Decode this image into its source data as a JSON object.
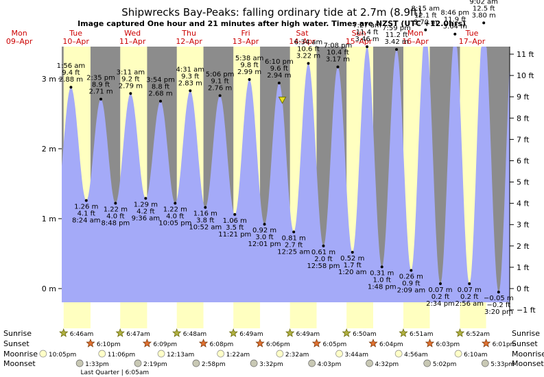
{
  "title": "Shipwrecks Bay-Peaks: falling  ordinary tide at 2.7m (8.9ft)",
  "subtitle": "Image captured One hour and 21 minutes after high water. Times are NZST (UTC +12.0hrs)",
  "chart_data": {
    "type": "area",
    "title": "Shipwrecks Bay-Peaks: falling  ordinary tide at 2.7m (8.9ft)",
    "left_axis": {
      "ticks": [
        "0 m",
        "1 m",
        "2 m",
        "3 m"
      ],
      "range_m": [
        -0.2,
        3.4
      ]
    },
    "right_axis": {
      "ticks": [
        "−1 ft",
        "0 ft",
        "1 ft",
        "2 ft",
        "3 ft",
        "4 ft",
        "5 ft",
        "6 ft",
        "7 ft",
        "8 ft",
        "9 ft",
        "10 ft",
        "11 ft"
      ]
    },
    "days": [
      {
        "name": "Mon",
        "date": "09–Apr"
      },
      {
        "name": "Tue",
        "date": "10–Apr"
      },
      {
        "name": "Wed",
        "date": "11–Apr"
      },
      {
        "name": "Thu",
        "date": "12–Apr"
      },
      {
        "name": "Fri",
        "date": "13–Apr"
      },
      {
        "name": "Sat",
        "date": "14–Apr"
      },
      {
        "name": "Sun",
        "date": "15–Apr"
      },
      {
        "name": "Mon",
        "date": "16–Apr"
      },
      {
        "name": "Tue",
        "date": "17–Apr"
      }
    ],
    "tides": [
      {
        "kind": "high",
        "time": "1:56 am",
        "ft": "9.4 ft",
        "m": 2.88,
        "mlabel": "2.88 m",
        "h": 33.9
      },
      {
        "kind": "low",
        "time": "8:24 am",
        "ft": "4.1 ft",
        "m": 1.26,
        "mlabel": "1.26 m",
        "h": 40.4
      },
      {
        "kind": "high",
        "time": "2:35 pm",
        "ft": "8.9 ft",
        "m": 2.71,
        "mlabel": "2.71 m",
        "h": 46.6
      },
      {
        "kind": "low",
        "time": "8:48 pm",
        "ft": "4.0 ft",
        "m": 1.22,
        "mlabel": "1.22 m",
        "h": 52.8
      },
      {
        "kind": "high",
        "time": "3:11 am",
        "ft": "9.2 ft",
        "m": 2.79,
        "mlabel": "2.79 m",
        "h": 59.2
      },
      {
        "kind": "low",
        "time": "9:36 am",
        "ft": "4.2 ft",
        "m": 1.29,
        "mlabel": "1.29 m",
        "h": 65.6
      },
      {
        "kind": "high",
        "time": "3:54 pm",
        "ft": "8.8 ft",
        "m": 2.68,
        "mlabel": "2.68 m",
        "h": 71.9
      },
      {
        "kind": "low",
        "time": "10:05 pm",
        "ft": "4.0 ft",
        "m": 1.22,
        "mlabel": "1.22 m",
        "h": 78.1
      },
      {
        "kind": "high",
        "time": "4:31 am",
        "ft": "9.3 ft",
        "m": 2.83,
        "mlabel": "2.83 m",
        "h": 84.5
      },
      {
        "kind": "low",
        "time": "10:52 am",
        "ft": "3.8 ft",
        "m": 1.16,
        "mlabel": "1.16 m",
        "h": 90.9
      },
      {
        "kind": "high",
        "time": "5:06 pm",
        "ft": "9.1 ft",
        "m": 2.76,
        "mlabel": "2.76 m",
        "h": 97.1
      },
      {
        "kind": "low",
        "time": "11:21 pm",
        "ft": "3.5 ft",
        "m": 1.06,
        "mlabel": "1.06 m",
        "h": 103.4
      },
      {
        "kind": "high",
        "time": "5:38 am",
        "ft": "9.8 ft",
        "m": 2.99,
        "mlabel": "2.99 m",
        "h": 109.6
      },
      {
        "kind": "low",
        "time": "12:01 pm",
        "ft": "3.0 ft",
        "m": 0.92,
        "mlabel": "0.92 m",
        "h": 116.0
      },
      {
        "kind": "high",
        "time": "6:10 pm",
        "ft": "9.6 ft",
        "m": 2.94,
        "mlabel": "2.94 m",
        "h": 122.2
      },
      {
        "kind": "low",
        "time": "12:25 am",
        "ft": "2.7 ft",
        "m": 0.81,
        "mlabel": "0.81 m",
        "h": 128.4
      },
      {
        "kind": "high",
        "time": "6:34 am",
        "ft": "10.6 ft",
        "m": 3.22,
        "mlabel": "3.22 m",
        "h": 134.6
      },
      {
        "kind": "low",
        "time": "12:58 pm",
        "ft": "2.0 ft",
        "m": 0.61,
        "mlabel": "0.61 m",
        "h": 141.0
      },
      {
        "kind": "high",
        "time": "7:08 pm",
        "ft": "10.4 ft",
        "m": 3.17,
        "mlabel": "3.17 m",
        "h": 147.1
      },
      {
        "kind": "low",
        "time": "1:20 am",
        "ft": "1.7 ft",
        "m": 0.52,
        "mlabel": "0.52 m",
        "h": 153.3
      },
      {
        "kind": "high",
        "time": "7:27 am",
        "ft": "11.4 ft",
        "m": 3.46,
        "mlabel": "3.46 m",
        "h": 159.5
      },
      {
        "kind": "low",
        "time": "1:48 pm",
        "ft": "1.0 ft",
        "m": 0.31,
        "mlabel": "0.31 m",
        "h": 165.8
      },
      {
        "kind": "high",
        "time": "7:59 pm",
        "ft": "11.2 ft",
        "m": 3.42,
        "mlabel": "3.42 m",
        "h": 172.0
      },
      {
        "kind": "low",
        "time": "2:09 am",
        "ft": "0.9 ft",
        "m": 0.26,
        "mlabel": "0.26 m",
        "h": 178.2
      },
      {
        "kind": "high",
        "time": "8:15 am",
        "ft": "12.1 ft",
        "m": 3.7,
        "mlabel": "3.70 m",
        "h": 184.3
      },
      {
        "kind": "low",
        "time": "2:34 pm",
        "ft": "0.2 ft",
        "m": 0.07,
        "mlabel": "0.07 m",
        "h": 190.6
      },
      {
        "kind": "high",
        "time": "8:46 pm",
        "ft": "11.9 ft",
        "m": 3.64,
        "mlabel": "3.64 m",
        "h": 196.8
      },
      {
        "kind": "low",
        "time": "2:56 am",
        "ft": "0.2 ft",
        "m": 0.07,
        "mlabel": "0.07 m",
        "h": 202.9
      },
      {
        "kind": "high",
        "time": "9:02 am",
        "ft": "12.5 ft",
        "m": 3.8,
        "mlabel": "3.80 m",
        "h": 209.0
      },
      {
        "kind": "low",
        "time": "3:20 pm",
        "ft": "−0.2 ft",
        "m": -0.05,
        "mlabel": "−0.05 m",
        "h": 215.3
      }
    ],
    "current_marker": {
      "time_hours": 123.55,
      "m": 2.7
    },
    "sun_moon": {
      "row_labels": [
        "Sunrise",
        "Sunset",
        "Moonrise",
        "Moonset"
      ],
      "sunrise": [
        {
          "h": 30.8,
          "t": "6:46am"
        },
        {
          "h": 54.8,
          "t": "6:47am"
        },
        {
          "h": 78.8,
          "t": "6:48am"
        },
        {
          "h": 102.8,
          "t": "6:49am"
        },
        {
          "h": 126.8,
          "t": "6:49am"
        },
        {
          "h": 150.8,
          "t": "6:50am"
        },
        {
          "h": 174.9,
          "t": "6:51am"
        },
        {
          "h": 198.9,
          "t": "6:52am"
        }
      ],
      "sunset": [
        {
          "h": 42.2,
          "t": "6:10pm"
        },
        {
          "h": 66.2,
          "t": "6:09pm"
        },
        {
          "h": 90.1,
          "t": "6:08pm"
        },
        {
          "h": 114.1,
          "t": "6:06pm"
        },
        {
          "h": 138.1,
          "t": "6:05pm"
        },
        {
          "h": 162.1,
          "t": "6:04pm"
        },
        {
          "h": 186.1,
          "t": "6:03pm"
        },
        {
          "h": 210.0,
          "t": "6:01pm"
        }
      ],
      "moonrise": [
        {
          "h": 22.1,
          "t": "10:05pm"
        },
        {
          "h": 47.1,
          "t": "11:06pm"
        },
        {
          "h": 72.2,
          "t": "12:13am"
        },
        {
          "h": 97.4,
          "t": "1:22am"
        },
        {
          "h": 122.5,
          "t": "2:32am"
        },
        {
          "h": 147.7,
          "t": "3:44am"
        },
        {
          "h": 172.9,
          "t": "4:56am"
        },
        {
          "h": 198.2,
          "t": "6:10am"
        }
      ],
      "moonset": [
        {
          "h": 37.6,
          "t": "1:33pm"
        },
        {
          "h": 62.3,
          "t": "2:19pm"
        },
        {
          "h": 87.0,
          "t": "2:58pm"
        },
        {
          "h": 111.5,
          "t": "3:32pm"
        },
        {
          "h": 136.1,
          "t": "4:03pm"
        },
        {
          "h": 160.5,
          "t": "4:32pm"
        },
        {
          "h": 185.0,
          "t": "5:02pm"
        },
        {
          "h": 209.6,
          "t": "5:33pm"
        }
      ],
      "moon_phase": "Last Quarter | 6:05am"
    }
  },
  "colors": {
    "night": "#8c8c8c",
    "day": "#ffffc0",
    "water": "#a4aaf8",
    "day_label": "#cc0000",
    "sun": "#b0b040",
    "sunset": "#e07030",
    "moonrise_fill": "#ffffc8",
    "moonset_fill": "#c8c8b4"
  }
}
